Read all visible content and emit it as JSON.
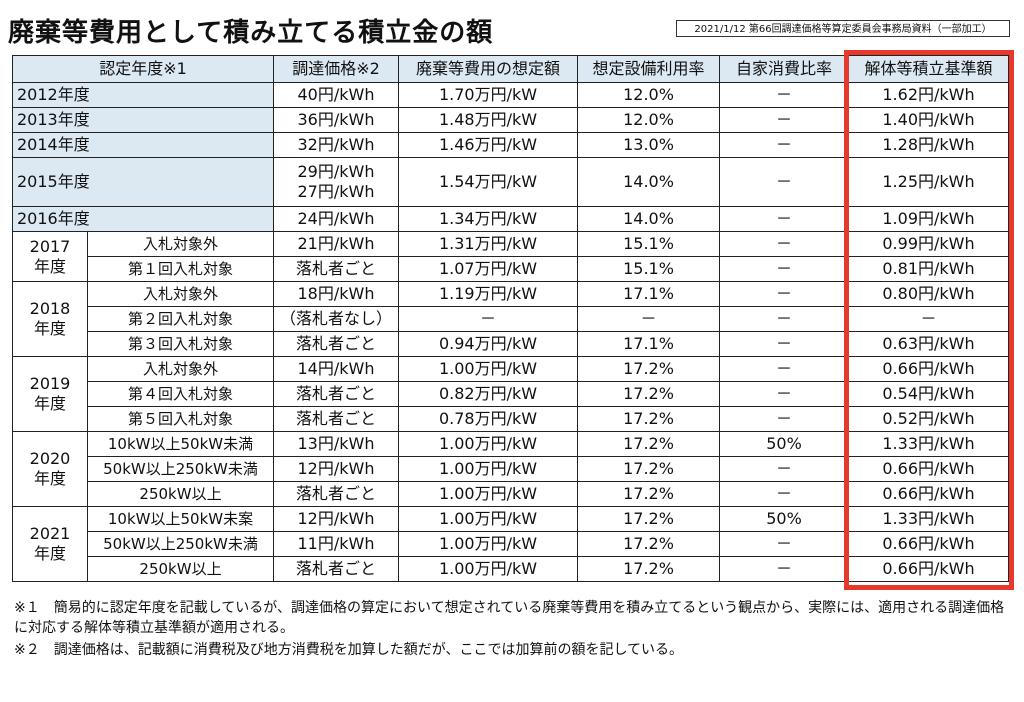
{
  "header": {
    "title": "廃棄等費用として積み立てる積立金の額",
    "source": "2021/1/12 第66回調達価格等算定委員会事務局資料（一部加工）"
  },
  "table": {
    "headers": [
      "認定年度※1",
      "調達価格※2",
      "廃棄等費用の想定額",
      "想定設備利用率",
      "自家消費比率",
      "解体等積立基準額"
    ],
    "groups": [
      {
        "year": "2012年度",
        "rows": [
          {
            "cells": [
              "40円/kWh",
              "1.70万円/kW",
              "12.0%",
              "－",
              "1.62円/kWh"
            ]
          }
        ]
      },
      {
        "year": "2013年度",
        "rows": [
          {
            "cells": [
              "36円/kWh",
              "1.48万円/kW",
              "12.0%",
              "－",
              "1.40円/kWh"
            ]
          }
        ]
      },
      {
        "year": "2014年度",
        "rows": [
          {
            "cells": [
              "32円/kWh",
              "1.46万円/kW",
              "13.0%",
              "－",
              "1.28円/kWh"
            ]
          }
        ]
      },
      {
        "year": "2015年度",
        "rows": [
          {
            "cells": [
              "29円/kWh\n27円/kWh",
              "1.54万円/kW",
              "14.0%",
              "－",
              "1.25円/kWh"
            ]
          }
        ]
      },
      {
        "year": "2016年度",
        "rows": [
          {
            "cells": [
              "24円/kWh",
              "1.34万円/kW",
              "14.0%",
              "－",
              "1.09円/kWh"
            ]
          }
        ]
      },
      {
        "year": "2017\n年度",
        "rows": [
          {
            "sub": "入札対象外",
            "cells": [
              "21円/kWh",
              "1.31万円/kW",
              "15.1%",
              "－",
              "0.99円/kWh"
            ]
          },
          {
            "sub": "第１回入札対象",
            "cells": [
              "落札者ごと",
              "1.07万円/kW",
              "15.1%",
              "－",
              "0.81円/kWh"
            ]
          }
        ]
      },
      {
        "year": "2018\n年度",
        "rows": [
          {
            "sub": "入札対象外",
            "cells": [
              "18円/kWh",
              "1.19万円/kW",
              "17.1%",
              "－",
              "0.80円/kWh"
            ]
          },
          {
            "sub": "第２回入札対象",
            "cells": [
              "（落札者なし）",
              "－",
              "－",
              "－",
              "－"
            ]
          },
          {
            "sub": "第３回入札対象",
            "cells": [
              "落札者ごと",
              "0.94万円/kW",
              "17.1%",
              "－",
              "0.63円/kWh"
            ]
          }
        ]
      },
      {
        "year": "2019\n年度",
        "rows": [
          {
            "sub": "入札対象外",
            "cells": [
              "14円/kWh",
              "1.00万円/kW",
              "17.2%",
              "－",
              "0.66円/kWh"
            ]
          },
          {
            "sub": "第４回入札対象",
            "cells": [
              "落札者ごと",
              "0.82万円/kW",
              "17.2%",
              "－",
              "0.54円/kWh"
            ]
          },
          {
            "sub": "第５回入札対象",
            "cells": [
              "落札者ごと",
              "0.78万円/kW",
              "17.2%",
              "－",
              "0.52円/kWh"
            ]
          }
        ]
      },
      {
        "year": "2020\n年度",
        "rows": [
          {
            "sub": "10kW以上50kW未満",
            "cells": [
              "13円/kWh",
              "1.00万円/kW",
              "17.2%",
              "50%",
              "1.33円/kWh"
            ]
          },
          {
            "sub": "50kW以上250kW未満",
            "cells": [
              "12円/kWh",
              "1.00万円/kW",
              "17.2%",
              "－",
              "0.66円/kWh"
            ]
          },
          {
            "sub": "250kW以上",
            "cells": [
              "落札者ごと",
              "1.00万円/kW",
              "17.2%",
              "－",
              "0.66円/kWh"
            ]
          }
        ]
      },
      {
        "year": "2021\n年度",
        "rows": [
          {
            "sub": "10kW以上50kW未案",
            "cells": [
              "12円/kWh",
              "1.00万円/kW",
              "17.2%",
              "50%",
              "1.33円/kWh"
            ]
          },
          {
            "sub": "50kW以上250kW未満",
            "cells": [
              "11円/kWh",
              "1.00万円/kW",
              "17.2%",
              "－",
              "0.66円/kWh"
            ]
          },
          {
            "sub": "250kW以上",
            "cells": [
              "落札者ごと",
              "1.00万円/kW",
              "17.2%",
              "－",
              "0.66円/kWh"
            ]
          }
        ]
      }
    ]
  },
  "notes": [
    "※１　簡易的に認定年度を記載しているが、調達価格の算定において想定されている廃棄等費用を積み立てるという観点から、実際には、適用される調達価格に対応する解体等積立基準額が適用される。",
    "※２　調達価格は、記載額に消費税及び地方消費税を加算した額だが、ここでは加算前の額を記している。"
  ]
}
